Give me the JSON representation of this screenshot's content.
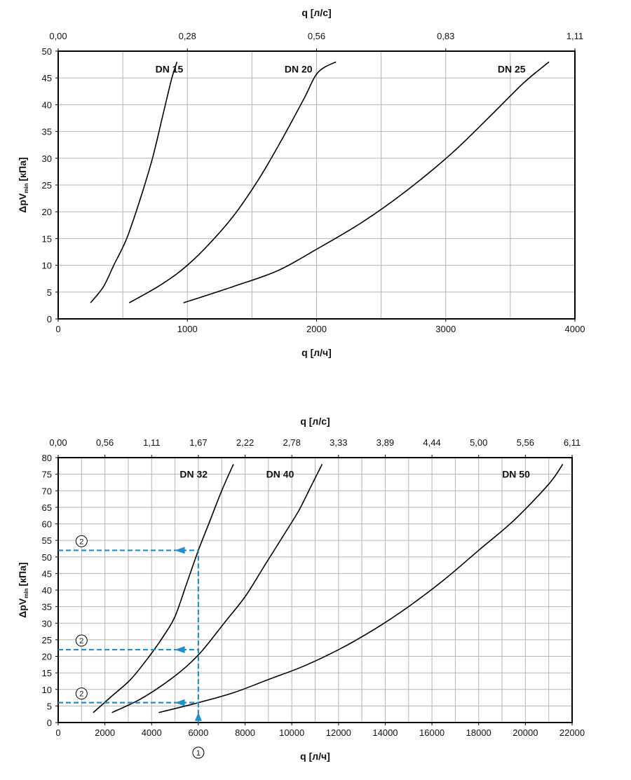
{
  "chart_data": [
    {
      "type": "line",
      "top_axis": {
        "label": "q [л/с]",
        "ticks": [
          {
            "label": "0,00",
            "x": 0
          },
          {
            "label": "0,28",
            "x": 1000
          },
          {
            "label": "0,56",
            "x": 2000
          },
          {
            "label": "0,83",
            "x": 3000
          },
          {
            "label": "1,11",
            "x": 4000
          }
        ]
      },
      "xlabel": "q [л/ч]",
      "ylabel": "ΔpV",
      "ylabel_sub": "min",
      "ylabel_unit": "[кПа]",
      "xlim": [
        0,
        4000
      ],
      "ylim": [
        0,
        50
      ],
      "x_ticks": [
        0,
        1000,
        2000,
        3000,
        4000
      ],
      "y_ticks": [
        0,
        5,
        10,
        15,
        20,
        25,
        30,
        35,
        40,
        45,
        50
      ],
      "x_grid_step": 500,
      "y_grid_step": 5,
      "series": [
        {
          "name": "DN 15",
          "points": [
            [
              250,
              3
            ],
            [
              350,
              6
            ],
            [
              430,
              10
            ],
            [
              530,
              15
            ],
            [
              630,
              22
            ],
            [
              730,
              30
            ],
            [
              810,
              38
            ],
            [
              880,
              45
            ],
            [
              920,
              48
            ]
          ]
        },
        {
          "name": "DN 20",
          "points": [
            [
              550,
              3
            ],
            [
              770,
              6
            ],
            [
              950,
              9
            ],
            [
              1130,
              13
            ],
            [
              1350,
              19
            ],
            [
              1550,
              26
            ],
            [
              1720,
              33
            ],
            [
              1900,
              41
            ],
            [
              2010,
              46
            ],
            [
              2150,
              48
            ]
          ]
        },
        {
          "name": "DN 25",
          "points": [
            [
              970,
              3
            ],
            [
              1350,
              6
            ],
            [
              1700,
              9
            ],
            [
              2000,
              13
            ],
            [
              2350,
              18
            ],
            [
              2700,
              24
            ],
            [
              3050,
              31
            ],
            [
              3350,
              38
            ],
            [
              3600,
              44
            ],
            [
              3800,
              48
            ]
          ]
        }
      ],
      "series_label_positions": [
        [
          860,
          46
        ],
        [
          1860,
          46
        ],
        [
          3510,
          46
        ]
      ]
    },
    {
      "type": "line",
      "top_axis": {
        "label": "q [л/с]",
        "ticks": [
          {
            "label": "0,00",
            "x": 0
          },
          {
            "label": "0,56",
            "x": 2000
          },
          {
            "label": "1,11",
            "x": 4000
          },
          {
            "label": "1,67",
            "x": 6000
          },
          {
            "label": "2,22",
            "x": 8000
          },
          {
            "label": "2,78",
            "x": 10000
          },
          {
            "label": "3,33",
            "x": 12000
          },
          {
            "label": "3,89",
            "x": 14000
          },
          {
            "label": "4,44",
            "x": 16000
          },
          {
            "label": "5,00",
            "x": 18000
          },
          {
            "label": "5,56",
            "x": 20000
          },
          {
            "label": "6,11",
            "x": 22000
          }
        ]
      },
      "xlabel": "q [л/ч]",
      "ylabel": "ΔpV",
      "ylabel_sub": "min",
      "ylabel_unit": "[кПа]",
      "xlim": [
        0,
        22000
      ],
      "ylim": [
        0,
        80
      ],
      "x_ticks": [
        0,
        2000,
        4000,
        6000,
        8000,
        10000,
        12000,
        14000,
        16000,
        18000,
        20000,
        22000
      ],
      "y_ticks": [
        0,
        5,
        10,
        15,
        20,
        25,
        30,
        35,
        40,
        45,
        50,
        55,
        60,
        65,
        70,
        75,
        80
      ],
      "x_grid_step": 1000,
      "y_grid_step": 5,
      "series": [
        {
          "name": "DN 32",
          "points": [
            [
              1500,
              3
            ],
            [
              2300,
              8
            ],
            [
              3100,
              13
            ],
            [
              3900,
              20
            ],
            [
              4500,
              26
            ],
            [
              5000,
              32
            ],
            [
              5500,
              42
            ],
            [
              6000,
              52
            ],
            [
              6500,
              61
            ],
            [
              7000,
              70
            ],
            [
              7500,
              78
            ]
          ]
        },
        {
          "name": "DN 40",
          "points": [
            [
              2300,
              3
            ],
            [
              3500,
              7
            ],
            [
              4600,
              12
            ],
            [
              5500,
              17
            ],
            [
              6200,
              22
            ],
            [
              7100,
              30
            ],
            [
              8000,
              38
            ],
            [
              8800,
              47
            ],
            [
              9600,
              56
            ],
            [
              10300,
              64
            ],
            [
              10800,
              71
            ],
            [
              11300,
              78
            ]
          ]
        },
        {
          "name": "DN 50",
          "points": [
            [
              4300,
              3
            ],
            [
              6000,
              6
            ],
            [
              7500,
              9
            ],
            [
              9000,
              13
            ],
            [
              10500,
              17
            ],
            [
              12000,
              22
            ],
            [
              13500,
              28
            ],
            [
              15000,
              35
            ],
            [
              16500,
              43
            ],
            [
              18000,
              52
            ],
            [
              19500,
              61
            ],
            [
              21000,
              72
            ],
            [
              21600,
              78
            ]
          ]
        }
      ],
      "series_label_positions": [
        [
          5800,
          74
        ],
        [
          9500,
          74
        ],
        [
          19600,
          74
        ]
      ],
      "annotation": {
        "flow_marker": "1",
        "level_marker": "2",
        "flow": 6000,
        "levels": [
          52,
          22,
          6
        ]
      },
      "annotation_color": "#1f8fd0"
    }
  ]
}
